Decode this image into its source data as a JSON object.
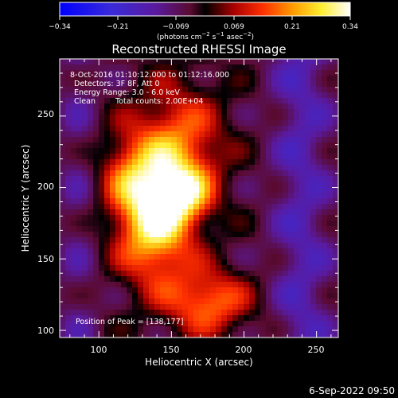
{
  "chart_data": {
    "type": "heatmap",
    "title": "Reconstructed RHESSI Image",
    "xlabel": "Heliocentric X (arcsec)",
    "ylabel": "Heliocentric Y (arcsec)",
    "xlim": [
      73,
      265
    ],
    "ylim": [
      95,
      290
    ],
    "xticks": [
      "100",
      "150",
      "200",
      "250"
    ],
    "xtick_values": [
      100,
      150,
      200,
      250
    ],
    "yticks": [
      "100",
      "150",
      "200",
      "250"
    ],
    "ytick_values": [
      100,
      150,
      200,
      250
    ],
    "colorbar": {
      "min": -0.34,
      "max": 0.34,
      "ticks": [
        "−0.34",
        "−0.21",
        "−0.069",
        "0.069",
        "0.21",
        "0.34"
      ],
      "label_main": "(photons cm",
      "label_sup1": "−2",
      "label_mid1": " s",
      "label_sup2": "−1",
      "label_mid2": " asec",
      "label_sup3": "−2",
      "label_end": ")",
      "colormap": "rainbow+white"
    },
    "peak": {
      "x": 138,
      "y": 177
    },
    "annotations": {
      "time_range": "8-Oct-2016 01:10:12.000 to 01:12:16.000",
      "detectors": "Detectors: 3F 8F, Att 0",
      "energy": "Energy Range: 3.0 - 6.0 keV",
      "clean_label": "Clean",
      "total_counts": "Total counts: 2.00E+04",
      "peak_position": "Position of Peak = [138,177]"
    },
    "sources": [
      {
        "x": 138,
        "y": 177,
        "sx": 18,
        "sy": 30,
        "amp": 0.34
      },
      {
        "x": 158,
        "y": 195,
        "sx": 14,
        "sy": 14,
        "amp": 0.2
      },
      {
        "x": 155,
        "y": 230,
        "sx": 22,
        "sy": 30,
        "amp": 0.2
      },
      {
        "x": 175,
        "y": 120,
        "sx": 20,
        "sy": 16,
        "amp": 0.22
      },
      {
        "x": 120,
        "y": 210,
        "sx": 14,
        "sy": 20,
        "amp": 0.12
      }
    ]
  },
  "footer": {
    "timestamp": "6-Sep-2022 09:50"
  }
}
